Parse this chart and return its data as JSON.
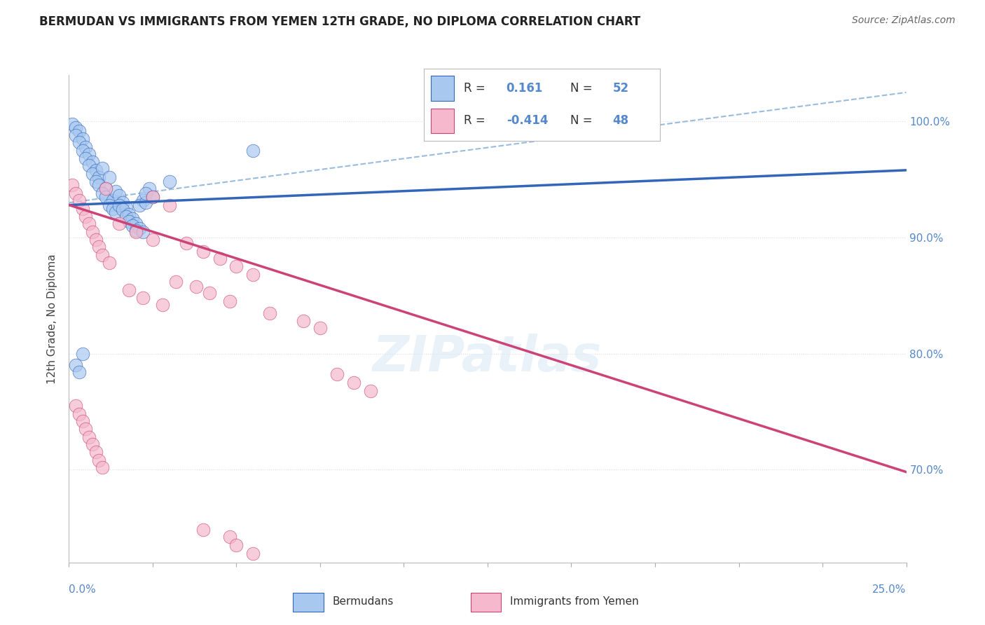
{
  "title": "BERMUDAN VS IMMIGRANTS FROM YEMEN 12TH GRADE, NO DIPLOMA CORRELATION CHART",
  "source": "Source: ZipAtlas.com",
  "ylabel": "12th Grade, No Diploma",
  "ylabel_ticks": [
    "70.0%",
    "80.0%",
    "90.0%",
    "100.0%"
  ],
  "ylabel_tick_vals": [
    0.7,
    0.8,
    0.9,
    1.0
  ],
  "xmin": 0.0,
  "xmax": 0.25,
  "ymin": 0.62,
  "ymax": 1.04,
  "r_blue": "0.161",
  "n_blue": "52",
  "r_pink": "-0.414",
  "n_pink": "48",
  "blue_color": "#a8c8f0",
  "pink_color": "#f5b8cc",
  "trendline_blue": "#3366bb",
  "trendline_pink": "#cc4477",
  "dashed_line_color": "#99bbdd",
  "grid_color": "#dddddd",
  "title_color": "#222222",
  "right_axis_color": "#5588cc",
  "legend_edge_color": "#bbbbbb",
  "blue_scatter": [
    [
      0.001,
      0.998
    ],
    [
      0.002,
      0.995
    ],
    [
      0.003,
      0.992
    ],
    [
      0.002,
      0.988
    ],
    [
      0.004,
      0.985
    ],
    [
      0.003,
      0.982
    ],
    [
      0.005,
      0.978
    ],
    [
      0.004,
      0.975
    ],
    [
      0.006,
      0.972
    ],
    [
      0.005,
      0.968
    ],
    [
      0.007,
      0.965
    ],
    [
      0.006,
      0.962
    ],
    [
      0.008,
      0.958
    ],
    [
      0.007,
      0.955
    ],
    [
      0.009,
      0.952
    ],
    [
      0.008,
      0.948
    ],
    [
      0.01,
      0.96
    ],
    [
      0.009,
      0.945
    ],
    [
      0.011,
      0.942
    ],
    [
      0.01,
      0.938
    ],
    [
      0.012,
      0.952
    ],
    [
      0.011,
      0.935
    ],
    [
      0.013,
      0.932
    ],
    [
      0.012,
      0.928
    ],
    [
      0.014,
      0.94
    ],
    [
      0.013,
      0.925
    ],
    [
      0.015,
      0.936
    ],
    [
      0.014,
      0.922
    ],
    [
      0.016,
      0.93
    ],
    [
      0.015,
      0.928
    ],
    [
      0.017,
      0.926
    ],
    [
      0.016,
      0.924
    ],
    [
      0.018,
      0.92
    ],
    [
      0.017,
      0.918
    ],
    [
      0.019,
      0.916
    ],
    [
      0.018,
      0.914
    ],
    [
      0.02,
      0.912
    ],
    [
      0.019,
      0.91
    ],
    [
      0.021,
      0.908
    ],
    [
      0.02,
      0.906
    ],
    [
      0.022,
      0.932
    ],
    [
      0.021,
      0.928
    ],
    [
      0.023,
      0.93
    ],
    [
      0.022,
      0.905
    ],
    [
      0.024,
      0.942
    ],
    [
      0.023,
      0.938
    ],
    [
      0.025,
      0.935
    ],
    [
      0.03,
      0.948
    ],
    [
      0.004,
      0.8
    ],
    [
      0.055,
      0.975
    ],
    [
      0.002,
      0.79
    ],
    [
      0.003,
      0.784
    ]
  ],
  "pink_scatter": [
    [
      0.001,
      0.945
    ],
    [
      0.002,
      0.938
    ],
    [
      0.003,
      0.932
    ],
    [
      0.004,
      0.925
    ],
    [
      0.005,
      0.918
    ],
    [
      0.006,
      0.912
    ],
    [
      0.007,
      0.905
    ],
    [
      0.008,
      0.898
    ],
    [
      0.009,
      0.892
    ],
    [
      0.01,
      0.885
    ],
    [
      0.011,
      0.942
    ],
    [
      0.012,
      0.878
    ],
    [
      0.025,
      0.935
    ],
    [
      0.03,
      0.928
    ],
    [
      0.035,
      0.895
    ],
    [
      0.04,
      0.888
    ],
    [
      0.045,
      0.882
    ],
    [
      0.05,
      0.875
    ],
    [
      0.055,
      0.868
    ],
    [
      0.018,
      0.855
    ],
    [
      0.022,
      0.848
    ],
    [
      0.028,
      0.842
    ],
    [
      0.032,
      0.862
    ],
    [
      0.038,
      0.858
    ],
    [
      0.042,
      0.852
    ],
    [
      0.048,
      0.845
    ],
    [
      0.002,
      0.755
    ],
    [
      0.003,
      0.748
    ],
    [
      0.004,
      0.742
    ],
    [
      0.005,
      0.735
    ],
    [
      0.006,
      0.728
    ],
    [
      0.007,
      0.722
    ],
    [
      0.008,
      0.715
    ],
    [
      0.009,
      0.708
    ],
    [
      0.01,
      0.702
    ],
    [
      0.015,
      0.912
    ],
    [
      0.02,
      0.905
    ],
    [
      0.025,
      0.898
    ],
    [
      0.06,
      0.835
    ],
    [
      0.07,
      0.828
    ],
    [
      0.075,
      0.822
    ],
    [
      0.08,
      0.782
    ],
    [
      0.085,
      0.775
    ],
    [
      0.09,
      0.768
    ],
    [
      0.04,
      0.648
    ],
    [
      0.048,
      0.642
    ],
    [
      0.05,
      0.635
    ],
    [
      0.055,
      0.628
    ]
  ],
  "blue_trend_x": [
    0.0,
    0.25
  ],
  "blue_trend_y": [
    0.928,
    0.958
  ],
  "pink_trend_x": [
    0.0,
    0.25
  ],
  "pink_trend_y": [
    0.928,
    0.698
  ],
  "dashed_trend_x": [
    0.0,
    0.25
  ],
  "dashed_trend_y": [
    0.93,
    1.025
  ]
}
